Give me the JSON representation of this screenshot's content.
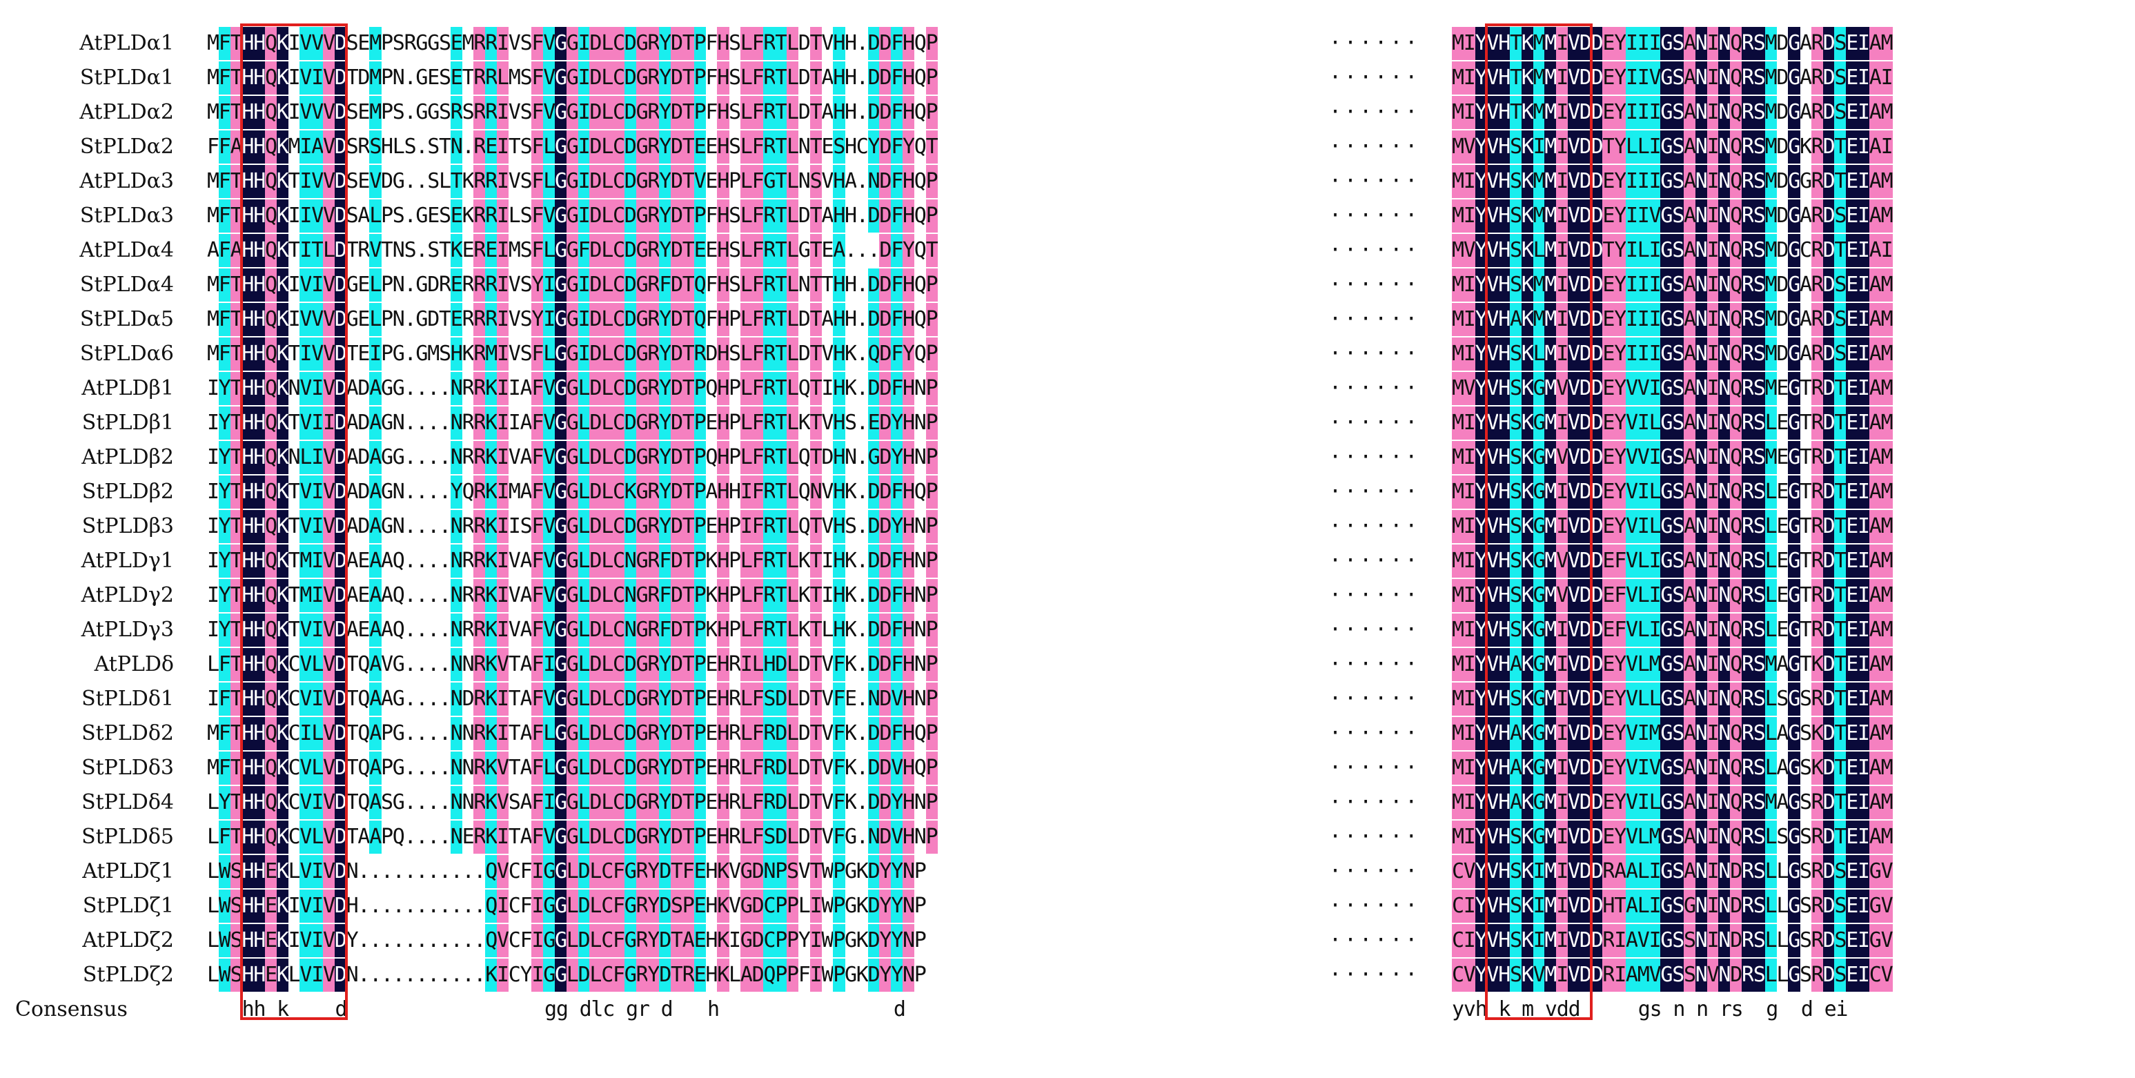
{
  "alignment": {
    "block1_sequences": [
      {
        "name": "AtPLDα1",
        "seq": "MFTHHQKIVVVDSEMPSRGGSEMRRIVSFVGGIDLCDGRYDTPFHSLFRTLDTVHH.DDFHQP"
      },
      {
        "name": "StPLDα1",
        "seq": "MFTHHQKIVIVDTDMPN.GESETRRLMSFVGGIDLCDGRYDTPFHSLFRTLDTAHH.DDFHQP"
      },
      {
        "name": "AtPLDα2",
        "seq": "MFTHHQKIVVVDSEMPS.GGSRSRRIVSFVGGIDLCDGRYDTPFHSLFRTLDTAHH.DDFHQP"
      },
      {
        "name": "StPLDα2",
        "seq": "FFAHHQKMIAVDSRSHLS.STN.REITSFLGGIDLCDGRYDTEEHSLFRTLNTESHCYDFYQT"
      },
      {
        "name": "AtPLDα3",
        "seq": "MFTHHQKTIVVDSEVDG..SLTKRRIVSFLGGIDLCDGRYDTVEHPLFGTLNSVHA.NDFHQP"
      },
      {
        "name": "StPLDα3",
        "seq": "MFTHHQKIIVVDSALPS.GESEKRRILSFVGGIDLCDGRYDTPFHSLFRTLDTAHH.DDFHQP"
      },
      {
        "name": "AtPLDα4",
        "seq": "AFAHHQKTITLDTRVTNS.STKEREIMSFLGGFDLCDGRYDTEEHSLFRTLGTEA...DFYQT"
      },
      {
        "name": "StPLDα4",
        "seq": "MFTHHQKIVIVDGELPN.GDRERRRIVSYIGGIDLCDGRFDTQFHSLFRTLNTTHH.DDFHQP"
      },
      {
        "name": "StPLDα5",
        "seq": "MFTHHQKIVVVDGELPN.GDTERRRIVSYIGGIDLCDGRYDTQFHPLFRTLDTAHH.DDFHQP"
      },
      {
        "name": "StPLDα6",
        "seq": "MFTHHQKTIVVDTEIPG.GMSHKRMIVSFLGGIDLCDGRYDTRDHSLFRTLDTVHK.QDFYQP"
      },
      {
        "name": "AtPLDβ1",
        "seq": "IYTHHQKNVIVDADAGG....NRRKIIAFVGGLDLCDGRYDTPQHPLFRTLQTIHK.DDFHNP"
      },
      {
        "name": "StPLDβ1",
        "seq": "IYTHHQKTVIIDADAGN....NRRKIIAFVGGLDLCDGRYDTPEHPLFRTLKTVHS.EDYHNP"
      },
      {
        "name": "AtPLDβ2",
        "seq": "IYTHHQKNLIVDADAGG....NRRKIVAFVGGLDLCDGRYDTPQHPLFRTLQTDHN.GDYHNP"
      },
      {
        "name": "StPLDβ2",
        "seq": "IYTHHQKTVIVDADAGN....YQRKIMAFVGGLDLCKGRYDTPAHHIFRTLQNVHK.DDFHQP"
      },
      {
        "name": "StPLDβ3",
        "seq": "IYTHHQKTVIVDADAGN....NRRKIISFVGGLDLCDGRYDTPEHPIFRTLQTVHS.DDYHNP"
      },
      {
        "name": "AtPLDγ1",
        "seq": "IYTHHQKTMIVDAEAAQ....NRRKIVAFVGGLDLCNGRFDTPKHPLFRTLKTIHK.DDFHNP"
      },
      {
        "name": "AtPLDγ2",
        "seq": "IYTHHQKTMIVDAEAAQ....NRRKIVAFVGGLDLCNGRFDTPKHPLFRTLKTIHK.DDFHNP"
      },
      {
        "name": "AtPLDγ3",
        "seq": "IYTHHQKTVIVDAEAAQ....NRRKIVAFVGGLDLCNGRFDTPKHPLFRTLKTLHK.DDFHNP"
      },
      {
        "name": "AtPLDδ",
        "seq": "LFTHHQKCVLVDTQAVG....NNRKVTAFIGGLDLCDGRYDTPEHRILHDLDTVFK.DDFHNP"
      },
      {
        "name": "StPLDδ1",
        "seq": "IFTHHQKCVIVDTQAAG....NDRKITAFVGGLDLCDGRYDTPEHRLFSDLDTVFE.NDVHNP"
      },
      {
        "name": "StPLDδ2",
        "seq": "MFTHHQKCILVDTQAPG....NNRKITAFLGGLDLCDGRYDTPEHRLFRDLDTVFK.DDFHQP"
      },
      {
        "name": "StPLDδ3",
        "seq": "MFTHHQKCVLVDTQAPG....NNRKVTAFLGGLDLCDGRYDTPEHRLFRDLDTVFK.DDVHQP"
      },
      {
        "name": "StPLDδ4",
        "seq": "LYTHHQKCVIVDTQASG....NNRKVSAFIGGLDLCDGRYDTPEHRLFRDLDTVFK.DDYHNP"
      },
      {
        "name": "StPLDδ5",
        "seq": "LFTHHQKCVLVDTAAPQ....NERKITAFVGGLDLCDGRYDTPEHRLFSDLDTVFG.NDVHNP"
      },
      {
        "name": "AtPLDζ1",
        "seq": "LWSHHEKLVIVDN...........QVCFIGGLDLCFGRYDTFEHKVGDNPSVTWPGKDYYNP"
      },
      {
        "name": "StPLDζ1",
        "seq": "LWSHHEKIVIVDH...........QICFIGGLDLCFGRYDSPEHKVGDCPPLIWPGKDYYNP"
      },
      {
        "name": "AtPLDζ2",
        "seq": "LWSHHEKIVIVDY...........QVCFIGGLDLCFGRYDTAEHKIGDCPPYIWPGKDYYNP"
      },
      {
        "name": "StPLDζ2",
        "seq": "LWSHHEKLVIVDN...........KICYIGGLDLCFGRYDTREHKLADQPPFIWPGKDYYNP"
      }
    ],
    "block2_sequences": [
      "MIYVHTKMMIVDDEYIIIGSANINQRSMDGARDSEIAM",
      "MIYVHTKMMIVDDEYIIVGSANINQRSMDGARDSEIAI",
      "MIYVHTKMMIVDDEYIIIGSANINQRSMDGARDSEIAM",
      "MVYVHSKIMIVDDTYLLIGSANINQRSMDGKRDTEIAI",
      "MIYVHSKMMIVDDEYIIIGSANINQRSMDGGRDTEIAM",
      "MIYVHSKMMIVDDEYIIVGSANINQRSMDGARDSEIAM",
      "MVYVHSKLMIVDDTYILIGSANINQRSMDGCRDTEIAI",
      "MIYVHSKMMIVDDEYIIIGSANINQRSMDGARDSEIAM",
      "MIYVHAKMMIVDDEYIIIGSANINQRSMDGARDSEIAM",
      "MIYVHSKLMIVDDEYIIIGSANINQRSMDGARDSEIAM",
      "MVYVHSKGMVVDDEYVVIGSANINQRSMEGTRDTEIAM",
      "MIYVHSKGMIVDDEYVILGSANINQRSLEGTRDTEIAM",
      "MIYVHSKGMVVDDEYVVIGSANINQRSMEGTRDTEIAM",
      "MIYVHSKGMIVDDEYVILGSANINQRSLEGTRDTEIAM",
      "MIYVHSKGMIVDDEYVILGSANINQRSLEGTRDTEIAM",
      "MIYVHSKGMVVDDEFVLIGSANINQRSLEGTRDTEIAM",
      "MIYVHSKGMVVDDEFVLIGSANINQRSLEGTRDTEIAM",
      "MIYVHSKGMIVDDEFVLIGSANINQRSLEGTRDTEIAM",
      "MIYVHAKGMIVDDEYVLMGSANINQRSMAGTKDTEIAM",
      "MIYVHSKGMIVDDEYVLLGSANINQRSLSGSRDTEIAM",
      "MIYVHAKGMIVDDEYVIMGSANINQRSLAGSKDTEIAM",
      "MIYVHAKGMIVDDEYVIVGSANINQRSLAGSKDTEIAM",
      "MIYVHAKGMIVDDEYVILGSANINQRSMAGSRDTEIAM",
      "MIYVHSKGMIVDDEYVLMGSANINQRSLSGSRDTEIAM",
      "CVYVHSKIMIVDDRAALIGSANINDRSLLGSRDSEIGV",
      "CIYVHSKIMIVDDHTALIGSGNINDRSLLGSRDSEIGV",
      "CIYVHSKIMIVDDRIAVIGSSNINDRSLLGSRDSEIGV",
      "CVYVHSKVMIVDDRIAMVGSSNVNDRSLLGSRDSEICV"
    ],
    "gap_marker": "······",
    "consensus_label": "Consensus",
    "consensus_block1": "   hh k    d                 gg dlc gr d   h               d   ",
    "consensus_block2": "yvh k m vdd     gs n n rs  g  d ei ",
    "colors": {
      "cyan": "#19eeee",
      "navy": "#0a0a3a",
      "pink": "#f580c0",
      "box": "#e0201e"
    },
    "highlight_boxes": [
      "motif-box-1",
      "motif-box-2"
    ]
  }
}
